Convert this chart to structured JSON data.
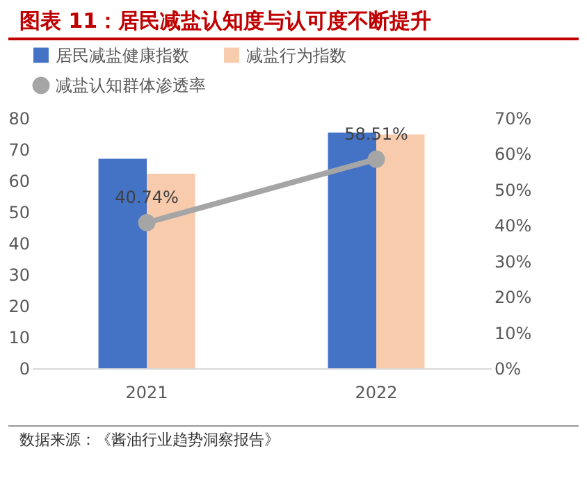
{
  "chart_data": {
    "type": "bar",
    "title": "图表 11：居民减盐认知度与认可度不断提升",
    "categories": [
      "2021",
      "2022"
    ],
    "series": [
      {
        "name": "居民减盐健康指数",
        "color": "#4472c4",
        "values": [
          67.0,
          75.4
        ]
      },
      {
        "name": "减盐行为指数",
        "color": "#f8cbad",
        "values": [
          62.2,
          74.8
        ]
      },
      {
        "name": "减盐认知群体渗透率",
        "type": "line",
        "axis": "y2",
        "color": "#a5a5a5",
        "values": [
          40.74,
          58.51
        ],
        "value_labels": [
          "40.74%",
          "58.51%"
        ]
      }
    ],
    "ylim": [
      0,
      80
    ],
    "yticks": [
      0,
      10,
      20,
      30,
      40,
      50,
      60,
      70,
      80
    ],
    "y2lim": [
      0,
      70
    ],
    "y2ticks": [
      {
        "value": 0,
        "label": "0%"
      },
      {
        "value": 10,
        "label": "10%"
      },
      {
        "value": 20,
        "label": "20%"
      },
      {
        "value": 30,
        "label": "30%"
      },
      {
        "value": 40,
        "label": "40%"
      },
      {
        "value": 50,
        "label": "50%"
      },
      {
        "value": 60,
        "label": "60%"
      },
      {
        "value": 70,
        "label": "70%"
      }
    ],
    "marker": "circle",
    "legend": "top left",
    "annotations": [
      "数据来源：《酱油行业趋势洞察报告》"
    ]
  }
}
